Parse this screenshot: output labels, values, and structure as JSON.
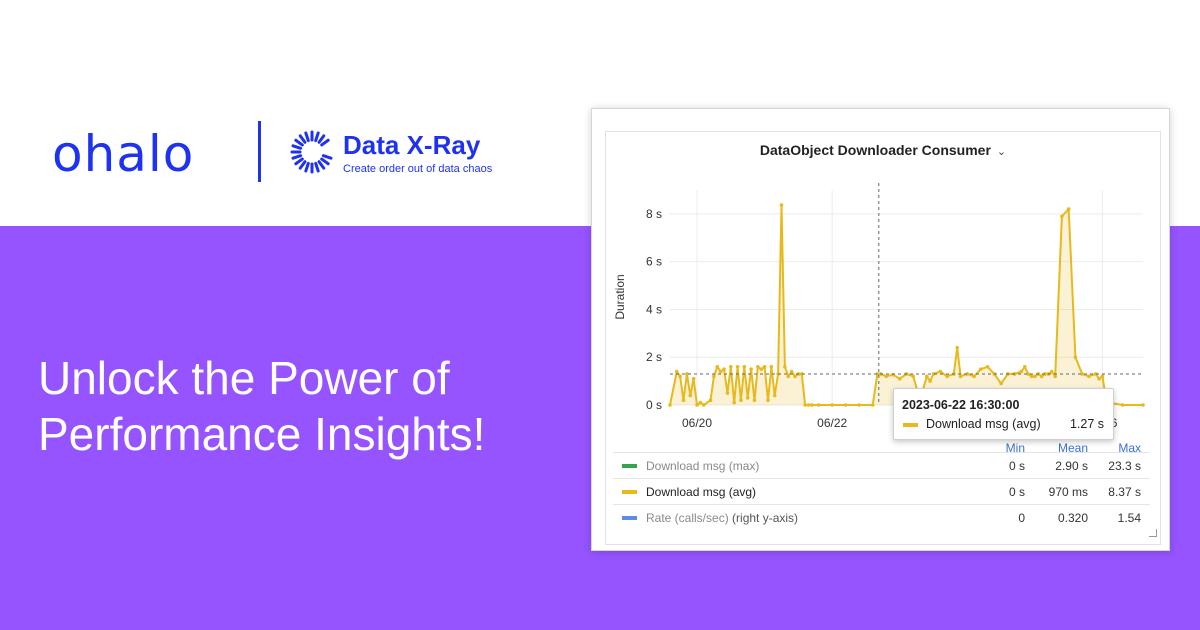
{
  "brand": {
    "name": "ohalo",
    "product_name": "Data X-Ray",
    "product_tagline": "Create order out of data chaos",
    "primary_color": "#1e32f0",
    "background_color": "#9554ff",
    "product_icon": "sunburst-ring-icon"
  },
  "headline": {
    "line1": "Unlock the Power of",
    "line2": "Performance Insights!"
  },
  "panel": {
    "title": "DataObject Downloader Consumer",
    "title_menu_icon": "chevron-down-icon",
    "legend_headers": {
      "min": "Min",
      "mean": "Mean",
      "max": "Max"
    },
    "legend": [
      {
        "label": "Download msg (max)",
        "extra": "",
        "min": "0 s",
        "mean": "2.90 s",
        "max": "23.3 s",
        "color": "#37a34a",
        "dimmed": true
      },
      {
        "label": "Download msg (avg)",
        "extra": "",
        "min": "0 s",
        "mean": "970 ms",
        "max": "8.37 s",
        "color": "#e8b91c",
        "dimmed": false
      },
      {
        "label": "Rate (calls/sec)",
        "extra": "(right y-axis)",
        "min": "0",
        "mean": "0.320",
        "max": "1.54",
        "color": "#5a8ee6",
        "dimmed": true
      }
    ],
    "tooltip": {
      "time": "2023-06-22 16:30:00",
      "series": "Download msg (avg)",
      "value": "1.27 s"
    }
  },
  "chart_data": {
    "type": "line",
    "title": "DataObject Downloader Consumer",
    "ylabel": "Duration",
    "xlabel": "",
    "y_ticks": [
      "0 s",
      "2 s",
      "4 s",
      "6 s",
      "8 s"
    ],
    "ylim": [
      0,
      9
    ],
    "x_tick_labels": [
      "06/20",
      "06/22",
      "06/26"
    ],
    "xlim_days": [
      19.6,
      26.6
    ],
    "x_tick_days": [
      20,
      22,
      26
    ],
    "crosshair_day": 22.69,
    "threshold_line_s": 1.3,
    "grid": true,
    "series": [
      {
        "name": "Download msg (avg)",
        "color": "#e8b91c",
        "x_days": [
          19.6,
          19.7,
          19.75,
          19.8,
          19.85,
          19.9,
          19.95,
          20.0,
          20.05,
          20.1,
          20.2,
          20.25,
          20.3,
          20.35,
          20.4,
          20.45,
          20.5,
          20.55,
          20.6,
          20.65,
          20.7,
          20.75,
          20.8,
          20.85,
          20.9,
          20.95,
          21.0,
          21.05,
          21.1,
          21.15,
          21.2,
          21.25,
          21.3,
          21.35,
          21.4,
          21.45,
          21.5,
          21.55,
          21.6,
          21.65,
          21.7,
          21.8,
          22.0,
          22.2,
          22.4,
          22.6,
          22.67,
          22.72,
          22.8,
          22.9,
          23.0,
          23.1,
          23.2,
          23.3,
          23.4,
          23.45,
          23.5,
          23.6,
          23.7,
          23.8,
          23.85,
          23.9,
          24.0,
          24.1,
          24.2,
          24.3,
          24.4,
          24.5,
          24.6,
          24.7,
          24.8,
          24.85,
          24.9,
          24.95,
          25.0,
          25.05,
          25.1,
          25.15,
          25.2,
          25.25,
          25.3,
          25.4,
          25.5,
          25.6,
          25.7,
          25.8,
          25.9,
          25.95,
          26.0,
          26.05,
          26.1,
          26.3,
          26.6
        ],
        "y_s": [
          0,
          1.4,
          1.2,
          0.2,
          1.3,
          0.4,
          1.1,
          0,
          0.1,
          0,
          0.2,
          1.2,
          1.6,
          1.4,
          1.5,
          0.5,
          1.6,
          0.1,
          1.6,
          0.2,
          1.6,
          0.3,
          1.5,
          0.2,
          1.6,
          1.5,
          1.6,
          0.2,
          1.6,
          0.4,
          1.3,
          8.37,
          1.6,
          1.2,
          1.4,
          1.2,
          1.3,
          1.3,
          0,
          0,
          0,
          0,
          0,
          0,
          0,
          0,
          1.3,
          1.3,
          1.2,
          1.27,
          1.1,
          1.3,
          1.2,
          0.2,
          1.2,
          1.0,
          1.3,
          1.4,
          1.2,
          1.3,
          2.4,
          1.2,
          1.3,
          1.2,
          1.5,
          1.6,
          1.3,
          0.9,
          1.3,
          1.3,
          1.4,
          1.6,
          1.3,
          1.2,
          1.2,
          1.3,
          1.2,
          1.3,
          1.3,
          1.4,
          1.2,
          7.9,
          8.2,
          2.0,
          1.3,
          1.2,
          1.3,
          1.1,
          1.2,
          0.3,
          0.1,
          0,
          0
        ]
      }
    ]
  }
}
